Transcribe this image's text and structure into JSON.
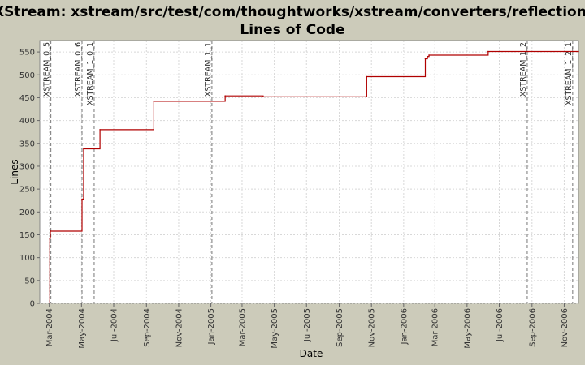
{
  "chart_data": {
    "type": "line",
    "title": "XStream: xstream/src/test/com/thoughtworks/xstream/converters/reflection/",
    "subtitle": "Lines of Code",
    "xlabel": "Date",
    "ylabel": "Lines",
    "ylim": [
      0,
      575
    ],
    "xlim": [
      "2004-02-12",
      "2006-11-28"
    ],
    "y_ticks": [
      0,
      50,
      100,
      150,
      200,
      250,
      300,
      350,
      400,
      450,
      500,
      550
    ],
    "x_ticks": [
      {
        "date": "2004-03-01",
        "label": "Mar-2004"
      },
      {
        "date": "2004-05-01",
        "label": "May-2004"
      },
      {
        "date": "2004-07-01",
        "label": "Jul-2004"
      },
      {
        "date": "2004-09-01",
        "label": "Sep-2004"
      },
      {
        "date": "2004-11-01",
        "label": "Nov-2004"
      },
      {
        "date": "2005-01-01",
        "label": "Jan-2005"
      },
      {
        "date": "2005-03-01",
        "label": "Mar-2005"
      },
      {
        "date": "2005-05-01",
        "label": "May-2005"
      },
      {
        "date": "2005-07-01",
        "label": "Jul-2005"
      },
      {
        "date": "2005-09-01",
        "label": "Sep-2005"
      },
      {
        "date": "2005-11-01",
        "label": "Nov-2005"
      },
      {
        "date": "2006-01-01",
        "label": "Jan-2006"
      },
      {
        "date": "2006-03-01",
        "label": "Mar-2006"
      },
      {
        "date": "2006-05-01",
        "label": "May-2006"
      },
      {
        "date": "2006-07-01",
        "label": "Jul-2006"
      },
      {
        "date": "2006-09-01",
        "label": "Sep-2006"
      },
      {
        "date": "2006-11-01",
        "label": "Nov-2006"
      }
    ],
    "grid": true,
    "step": true,
    "series": [
      {
        "color": "#b00000",
        "points": [
          {
            "x": "2004-03-02",
            "y": 0
          },
          {
            "x": "2004-03-02",
            "y": 142
          },
          {
            "x": "2004-03-03",
            "y": 158
          },
          {
            "x": "2004-05-02",
            "y": 228
          },
          {
            "x": "2004-05-05",
            "y": 338
          },
          {
            "x": "2004-06-05",
            "y": 380
          },
          {
            "x": "2004-09-15",
            "y": 442
          },
          {
            "x": "2005-01-28",
            "y": 454
          },
          {
            "x": "2005-04-10",
            "y": 452
          },
          {
            "x": "2005-10-23",
            "y": 496
          },
          {
            "x": "2006-02-11",
            "y": 535
          },
          {
            "x": "2006-02-15",
            "y": 540
          },
          {
            "x": "2006-02-18",
            "y": 543
          },
          {
            "x": "2006-06-10",
            "y": 551
          },
          {
            "x": "2006-11-28",
            "y": 551
          }
        ]
      }
    ],
    "events": [
      {
        "date": "2004-03-04",
        "label": "XSTREAM_0_5"
      },
      {
        "date": "2004-05-02",
        "label": "XSTREAM_0_6"
      },
      {
        "date": "2004-05-25",
        "label": "XSTREAM_1_0_1"
      },
      {
        "date": "2005-01-03",
        "label": "XSTREAM_1_1"
      },
      {
        "date": "2006-08-23",
        "label": "XSTREAM_1_2"
      },
      {
        "date": "2006-11-17",
        "label": "XSTREAM_1_2_1"
      }
    ],
    "colors": {
      "background": "#cccbba",
      "plot_background": "#ffffff",
      "grid": "#d8d8d8",
      "line": "#b00000",
      "event_line": "#777777"
    }
  }
}
